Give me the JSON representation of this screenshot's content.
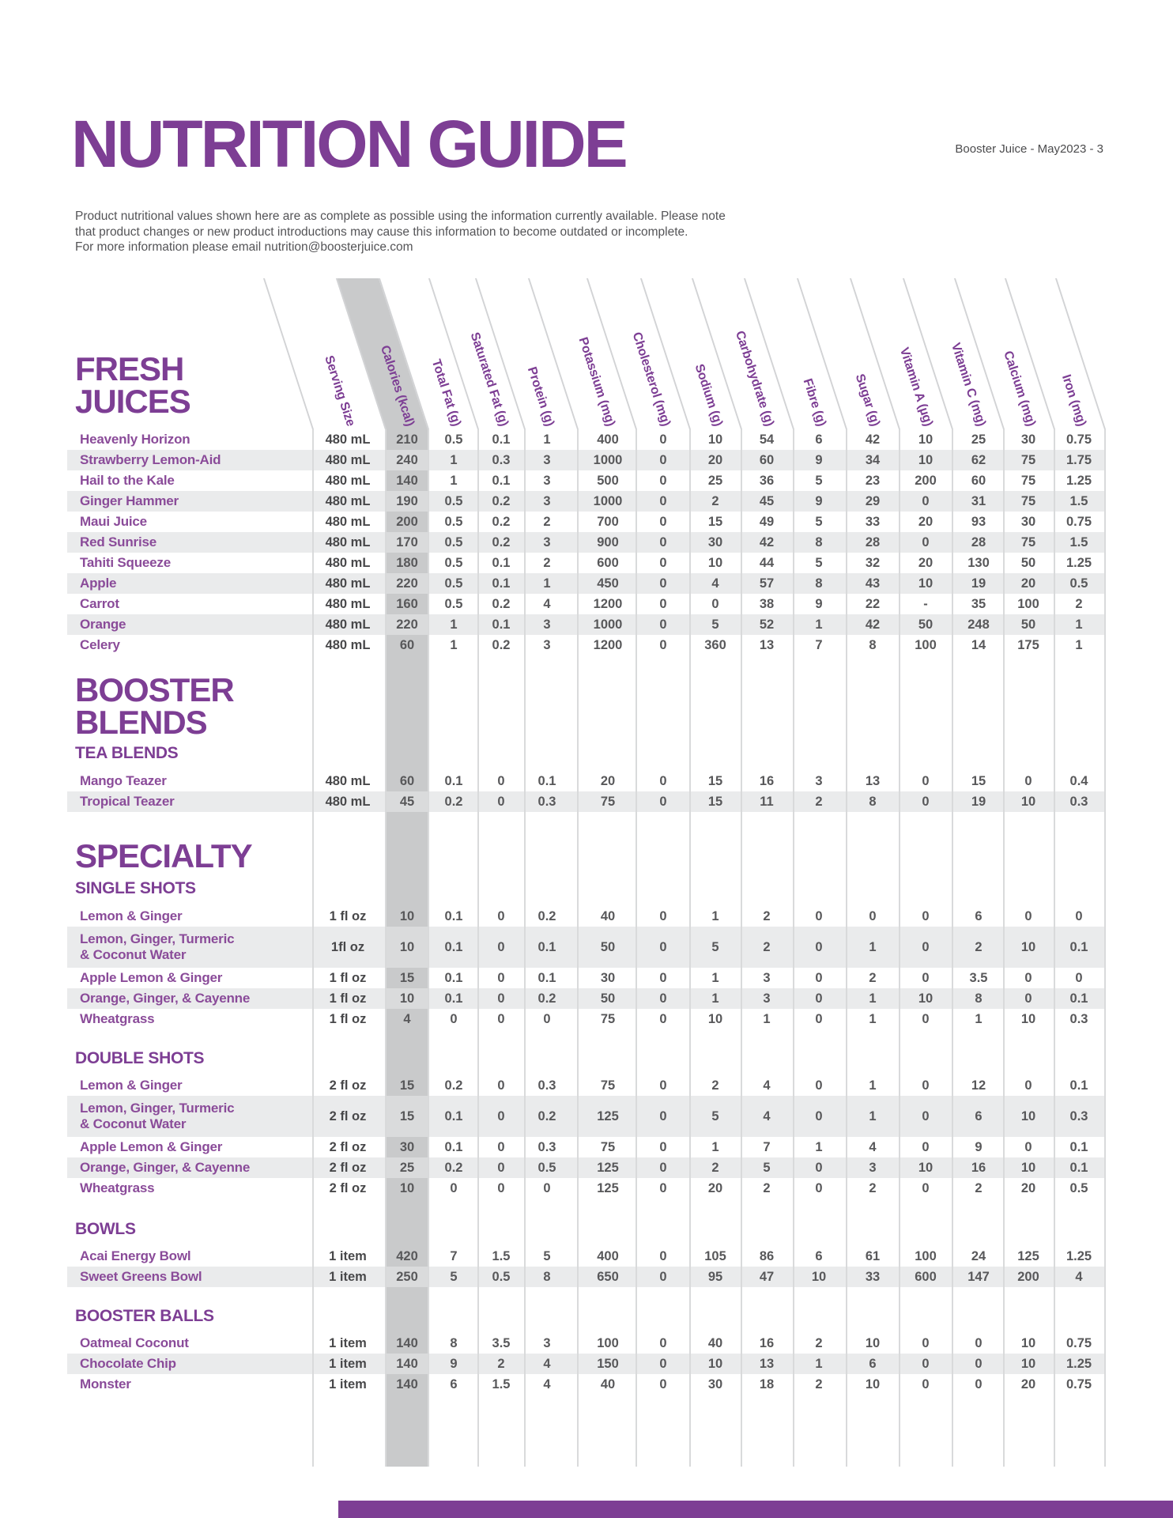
{
  "page": {
    "title": "NUTRITION GUIDE",
    "page_tag": "Booster Juice - May2023 - 3",
    "intro_lines": [
      "Product nutritional values shown here are as complete as possible using the information currently available. Please note",
      "that product changes or new product introductions may cause this information to become outdated or incomplete.",
      "For more information please email  nutrition@boosterjuice.com"
    ],
    "accent_color": "#7d3e94"
  },
  "table": {
    "columns": [
      "Serving Size",
      "Calories (kcal)",
      "Total Fat (g)",
      "Saturated Fat (g)",
      "Protein (g)",
      "Potassium (mg)",
      "Cholesterol (mg)",
      "Sodium (g)",
      "Carbohydrate (g)",
      "Fibre (g)",
      "Sugar (g)",
      "Vitamin A (µg)",
      "Vitamin C (mg)",
      "Calcium (mg)",
      "Iron (mg)"
    ],
    "sections": [
      {
        "heading_lines": [
          "FRESH",
          "JUICES"
        ],
        "subhead": null,
        "rows": [
          {
            "name": "Heavenly Horizon",
            "values": [
              "480 mL",
              "210",
              "0.5",
              "0.1",
              "1",
              "400",
              "0",
              "10",
              "54",
              "6",
              "42",
              "10",
              "25",
              "30",
              "0.75"
            ]
          },
          {
            "name": "Strawberry Lemon-Aid",
            "values": [
              "480 mL",
              "240",
              "1",
              "0.3",
              "3",
              "1000",
              "0",
              "20",
              "60",
              "9",
              "34",
              "10",
              "62",
              "75",
              "1.75"
            ]
          },
          {
            "name": "Hail to the Kale",
            "values": [
              "480 mL",
              "140",
              "1",
              "0.1",
              "3",
              "500",
              "0",
              "25",
              "36",
              "5",
              "23",
              "200",
              "60",
              "75",
              "1.25"
            ]
          },
          {
            "name": "Ginger Hammer",
            "values": [
              "480 mL",
              "190",
              "0.5",
              "0.2",
              "3",
              "1000",
              "0",
              "2",
              "45",
              "9",
              "29",
              "0",
              "31",
              "75",
              "1.5"
            ]
          },
          {
            "name": "Maui Juice",
            "values": [
              "480 mL",
              "200",
              "0.5",
              "0.2",
              "2",
              "700",
              "0",
              "15",
              "49",
              "5",
              "33",
              "20",
              "93",
              "30",
              "0.75"
            ]
          },
          {
            "name": "Red Sunrise",
            "values": [
              "480 mL",
              "170",
              "0.5",
              "0.2",
              "3",
              "900",
              "0",
              "30",
              "42",
              "8",
              "28",
              "0",
              "28",
              "75",
              "1.5"
            ]
          },
          {
            "name": "Tahiti Squeeze",
            "values": [
              "480 mL",
              "180",
              "0.5",
              "0.1",
              "2",
              "600",
              "0",
              "10",
              "44",
              "5",
              "32",
              "20",
              "130",
              "50",
              "1.25"
            ]
          },
          {
            "name": "Apple",
            "values": [
              "480 mL",
              "220",
              "0.5",
              "0.1",
              "1",
              "450",
              "0",
              "4",
              "57",
              "8",
              "43",
              "10",
              "19",
              "20",
              "0.5"
            ]
          },
          {
            "name": "Carrot",
            "values": [
              "480 mL",
              "160",
              "0.5",
              "0.2",
              "4",
              "1200",
              "0",
              "0",
              "38",
              "9",
              "22",
              "-",
              "35",
              "100",
              "2"
            ]
          },
          {
            "name": "Orange",
            "values": [
              "480 mL",
              "220",
              "1",
              "0.1",
              "3",
              "1000",
              "0",
              "5",
              "52",
              "1",
              "42",
              "50",
              "248",
              "50",
              "1"
            ]
          },
          {
            "name": "Celery",
            "values": [
              "480 mL",
              "60",
              "1",
              "0.2",
              "3",
              "1200",
              "0",
              "360",
              "13",
              "7",
              "8",
              "100",
              "14",
              "175",
              "1"
            ]
          }
        ]
      },
      {
        "heading_lines": [
          "BOOSTER",
          "BLENDS"
        ],
        "subhead": "TEA BLENDS",
        "rows": [
          {
            "name": "Mango Teazer",
            "values": [
              "480 mL",
              "60",
              "0.1",
              "0",
              "0.1",
              "20",
              "0",
              "15",
              "16",
              "3",
              "13",
              "0",
              "15",
              "0",
              "0.4"
            ]
          },
          {
            "name": "Tropical Teazer",
            "values": [
              "480 mL",
              "45",
              "0.2",
              "0",
              "0.3",
              "75",
              "0",
              "15",
              "11",
              "2",
              "8",
              "0",
              "19",
              "10",
              "0.3"
            ]
          }
        ]
      },
      {
        "heading_lines": [
          "SPECIALTY"
        ],
        "subhead": "SINGLE SHOTS",
        "rows": [
          {
            "name": "Lemon & Ginger",
            "values": [
              "1 fl oz",
              "10",
              "0.1",
              "0",
              "0.2",
              "40",
              "0",
              "1",
              "2",
              "0",
              "0",
              "0",
              "6",
              "0",
              "0"
            ]
          },
          {
            "name_lines": [
              "Lemon, Ginger, Turmeric",
              "& Coconut Water"
            ],
            "values": [
              "1fl oz",
              "10",
              "0.1",
              "0",
              "0.1",
              "50",
              "0",
              "5",
              "2",
              "0",
              "1",
              "0",
              "2",
              "10",
              "0.1"
            ]
          },
          {
            "name": "Apple Lemon & Ginger",
            "values": [
              "1 fl oz",
              "15",
              "0.1",
              "0",
              "0.1",
              "30",
              "0",
              "1",
              "3",
              "0",
              "2",
              "0",
              "3.5",
              "0",
              "0"
            ]
          },
          {
            "name": "Orange, Ginger, & Cayenne",
            "values": [
              "1 fl oz",
              "10",
              "0.1",
              "0",
              "0.2",
              "50",
              "0",
              "1",
              "3",
              "0",
              "1",
              "10",
              "8",
              "0",
              "0.1"
            ]
          },
          {
            "name": "Wheatgrass",
            "values": [
              "1 fl oz",
              "4",
              "0",
              "0",
              "0",
              "75",
              "0",
              "10",
              "1",
              "0",
              "1",
              "0",
              "1",
              "10",
              "0.3"
            ]
          }
        ]
      },
      {
        "heading_lines": [],
        "subhead": "DOUBLE SHOTS",
        "rows": [
          {
            "name": "Lemon & Ginger",
            "values": [
              "2 fl oz",
              "15",
              "0.2",
              "0",
              "0.3",
              "75",
              "0",
              "2",
              "4",
              "0",
              "1",
              "0",
              "12",
              "0",
              "0.1"
            ]
          },
          {
            "name_lines": [
              "Lemon, Ginger, Turmeric",
              "& Coconut Water"
            ],
            "values": [
              "2 fl oz",
              "15",
              "0.1",
              "0",
              "0.2",
              "125",
              "0",
              "5",
              "4",
              "0",
              "1",
              "0",
              "6",
              "10",
              "0.3"
            ]
          },
          {
            "name": "Apple Lemon & Ginger",
            "values": [
              "2 fl oz",
              "30",
              "0.1",
              "0",
              "0.3",
              "75",
              "0",
              "1",
              "7",
              "1",
              "4",
              "0",
              "9",
              "0",
              "0.1"
            ]
          },
          {
            "name": "Orange, Ginger, & Cayenne",
            "values": [
              "2 fl oz",
              "25",
              "0.2",
              "0",
              "0.5",
              "125",
              "0",
              "2",
              "5",
              "0",
              "3",
              "10",
              "16",
              "10",
              "0.1"
            ]
          },
          {
            "name": "Wheatgrass",
            "values": [
              "2 fl oz",
              "10",
              "0",
              "0",
              "0",
              "125",
              "0",
              "20",
              "2",
              "0",
              "2",
              "0",
              "2",
              "20",
              "0.5"
            ]
          }
        ]
      },
      {
        "heading_lines": [],
        "subhead": "BOWLS",
        "rows": [
          {
            "name": "Acai Energy Bowl",
            "values": [
              "1 item",
              "420",
              "7",
              "1.5",
              "5",
              "400",
              "0",
              "105",
              "86",
              "6",
              "61",
              "100",
              "24",
              "125",
              "1.25"
            ]
          },
          {
            "name": "Sweet Greens Bowl",
            "values": [
              "1 item",
              "250",
              "5",
              "0.5",
              "8",
              "650",
              "0",
              "95",
              "47",
              "10",
              "33",
              "600",
              "147",
              "200",
              "4"
            ]
          }
        ]
      },
      {
        "heading_lines": [],
        "subhead": "BOOSTER BALLS",
        "rows": [
          {
            "name": "Oatmeal Coconut",
            "values": [
              "1 item",
              "140",
              "8",
              "3.5",
              "3",
              "100",
              "0",
              "40",
              "16",
              "2",
              "10",
              "0",
              "0",
              "10",
              "0.75"
            ]
          },
          {
            "name": "Chocolate Chip",
            "values": [
              "1 item",
              "140",
              "9",
              "2",
              "4",
              "150",
              "0",
              "10",
              "13",
              "1",
              "6",
              "0",
              "0",
              "10",
              "1.25"
            ]
          },
          {
            "name": "Monster",
            "values": [
              "1 item",
              "140",
              "6",
              "1.5",
              "4",
              "40",
              "0",
              "30",
              "18",
              "2",
              "10",
              "0",
              "0",
              "20",
              "0.75"
            ]
          }
        ]
      }
    ]
  }
}
